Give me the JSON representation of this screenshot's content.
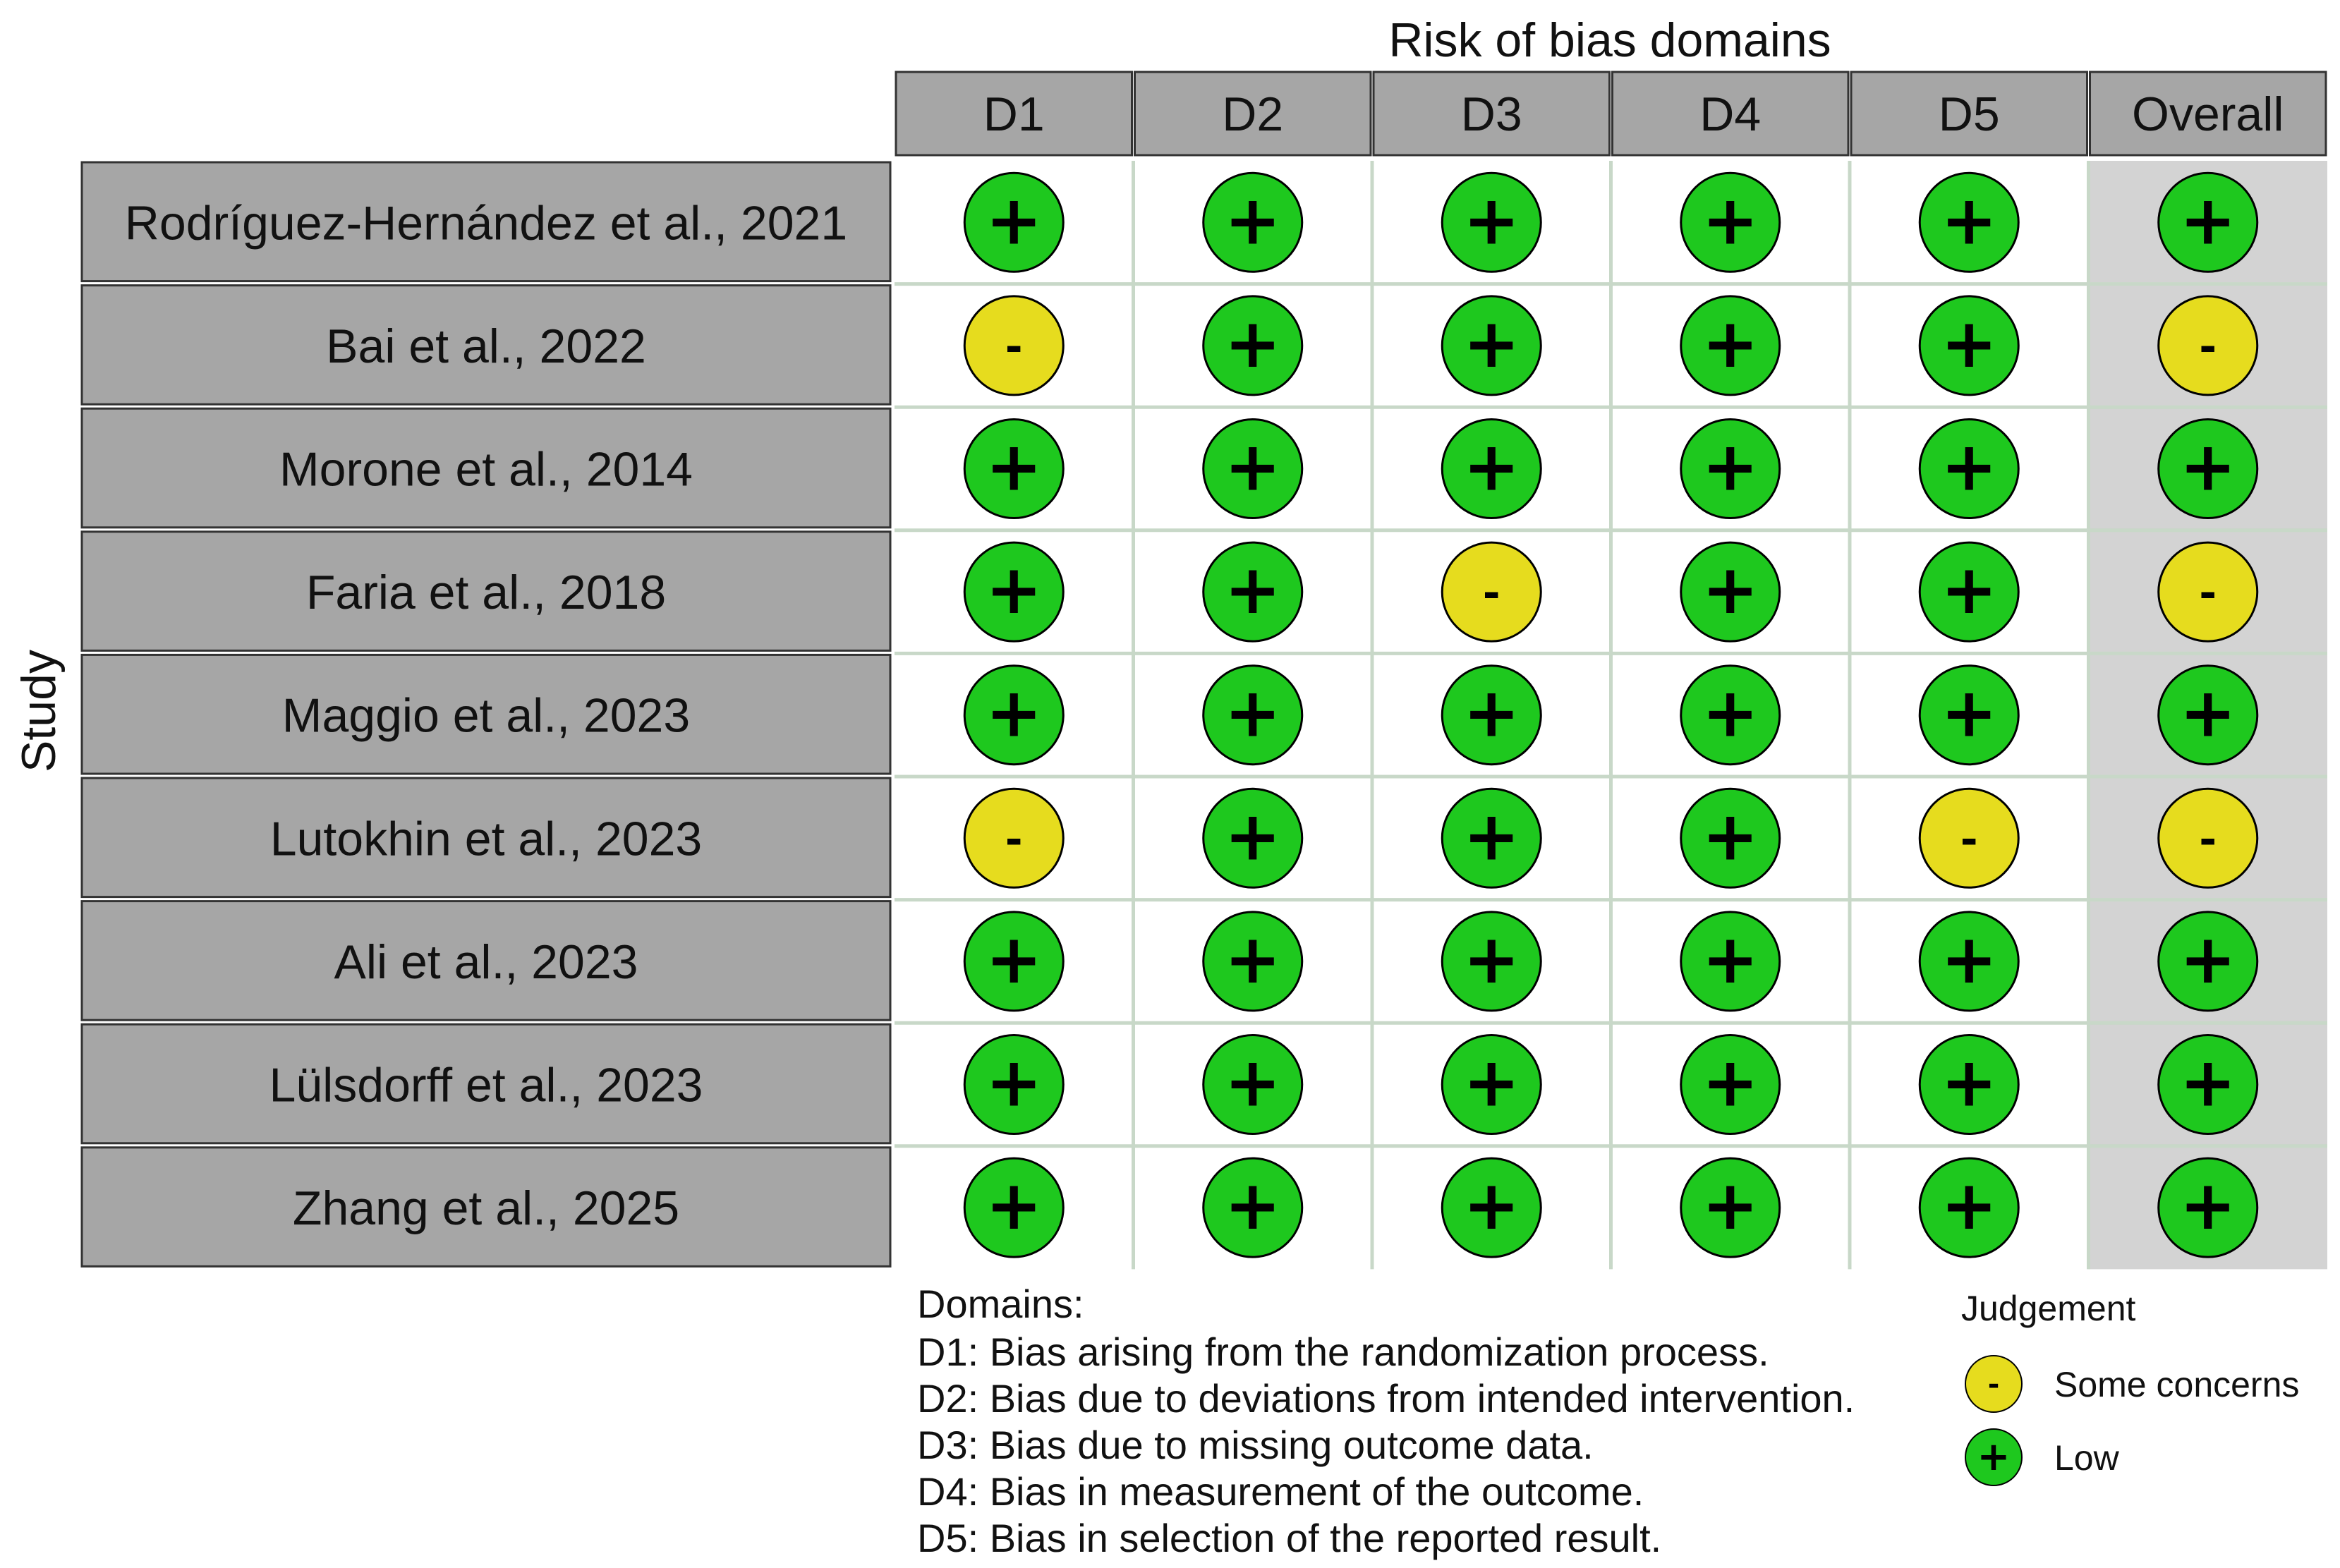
{
  "chart_data": {
    "type": "table",
    "title": "Risk of bias domains",
    "ylabel": "Study",
    "domains": [
      "D1",
      "D2",
      "D3",
      "D4",
      "D5",
      "Overall"
    ],
    "studies": [
      {
        "name": "Rodríguez-Hernández et al., 2021",
        "judgements": [
          "low",
          "low",
          "low",
          "low",
          "low",
          "low"
        ]
      },
      {
        "name": "Bai et al., 2022",
        "judgements": [
          "some",
          "low",
          "low",
          "low",
          "low",
          "some"
        ]
      },
      {
        "name": "Morone et al., 2014",
        "judgements": [
          "low",
          "low",
          "low",
          "low",
          "low",
          "low"
        ]
      },
      {
        "name": "Faria et al., 2018",
        "judgements": [
          "low",
          "low",
          "some",
          "low",
          "low",
          "some"
        ]
      },
      {
        "name": "Maggio et al., 2023",
        "judgements": [
          "low",
          "low",
          "low",
          "low",
          "low",
          "low"
        ]
      },
      {
        "name": "Lutokhin et al., 2023",
        "judgements": [
          "some",
          "low",
          "low",
          "low",
          "some",
          "some"
        ]
      },
      {
        "name": "Ali et al., 2023",
        "judgements": [
          "low",
          "low",
          "low",
          "low",
          "low",
          "low"
        ]
      },
      {
        "name": "Lülsdorff et al., 2023",
        "judgements": [
          "low",
          "low",
          "low",
          "low",
          "low",
          "low"
        ]
      },
      {
        "name": "Zhang et al., 2025",
        "judgements": [
          "low",
          "low",
          "low",
          "low",
          "low",
          "low"
        ]
      }
    ],
    "domains_legend": {
      "title": "Domains:",
      "items": [
        "D1: Bias arising from the randomization process.",
        "D2: Bias due to deviations from intended intervention.",
        "D3: Bias due to missing outcome data.",
        "D4: Bias in measurement of the outcome.",
        "D5: Bias in selection of the reported result."
      ]
    },
    "judgement_legend": {
      "title": "Judgement",
      "items": [
        {
          "key": "some",
          "symbol": "-",
          "label": "Some concerns",
          "color": "#e6dc1e"
        },
        {
          "key": "low",
          "symbol": "+",
          "label": "Low",
          "color": "#1ec81e"
        }
      ]
    },
    "colors": {
      "header_fill": "#a6a6a6",
      "study_fill": "#a6a6a6",
      "overall_column_fill": "#d3d3d3",
      "grid_line": "#c8d8c8"
    }
  }
}
